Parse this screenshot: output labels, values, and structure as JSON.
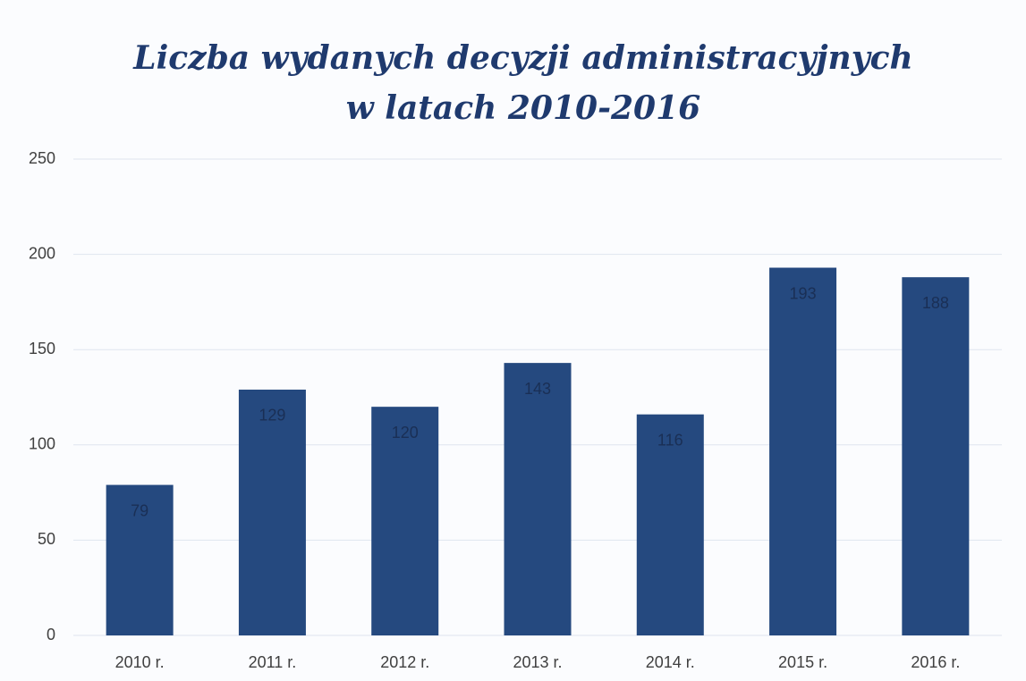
{
  "chart_data": {
    "type": "bar",
    "title": [
      "Liczba wydanych decyzji administracyjnych",
      "w latach 2010-2016"
    ],
    "categories": [
      "2010 r.",
      "2011 r.",
      "2012 r.",
      "2013 r.",
      "2014 r.",
      "2015 r.",
      "2016 r."
    ],
    "values": [
      79,
      129,
      120,
      143,
      116,
      193,
      188
    ],
    "color": "#25497f",
    "ylim": [
      0,
      250
    ],
    "yticks": [
      0,
      50,
      100,
      150,
      200,
      250
    ],
    "grid": true
  }
}
